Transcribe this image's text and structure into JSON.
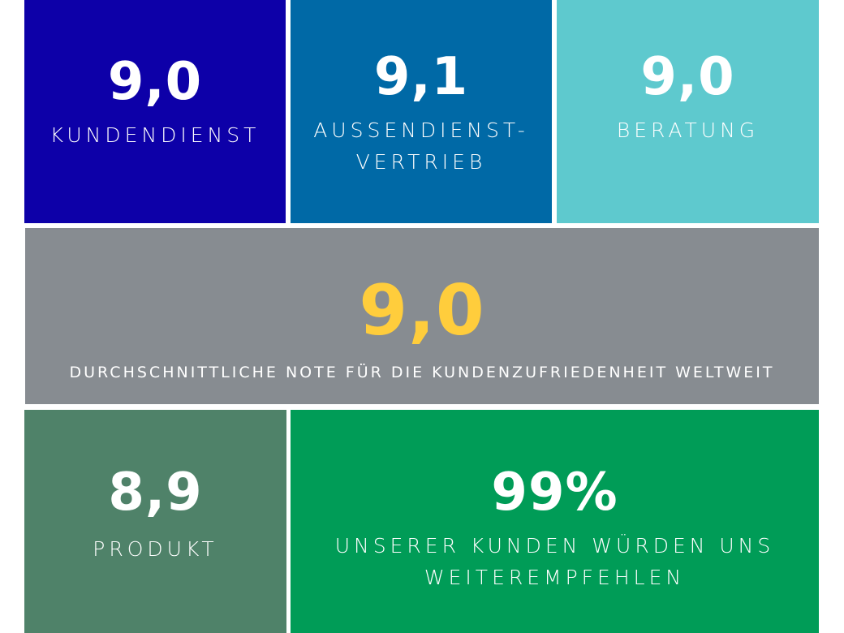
{
  "colors": {
    "kundendienst": "#0d00a8",
    "aussendienst": "#0069a6",
    "beratung": "#5ec9ce",
    "average_bg": "#878c91",
    "average_value": "#ffcd3c",
    "produkt": "#4f8269",
    "recommend": "#009c57"
  },
  "tiles": {
    "kundendienst": {
      "value": "9,0",
      "label": "KUNDENDIENST"
    },
    "aussendienst": {
      "value": "9,1",
      "label_line1": "AUSSENDIENST-",
      "label_line2": "VERTRIEB"
    },
    "beratung": {
      "value": "9,0",
      "label": "BERATUNG"
    },
    "average": {
      "value": "9,0",
      "label": "DURCHSCHNITTLICHE NOTE FÜR DIE KUNDENZUFRIEDENHEIT WELTWEIT"
    },
    "produkt": {
      "value": "8,9",
      "label": "PRODUKT"
    },
    "recommend": {
      "value": "99%",
      "label_line1": "UNSERER KUNDEN WÜRDEN UNS",
      "label_line2": "WEITEREMPFEHLEN"
    }
  }
}
